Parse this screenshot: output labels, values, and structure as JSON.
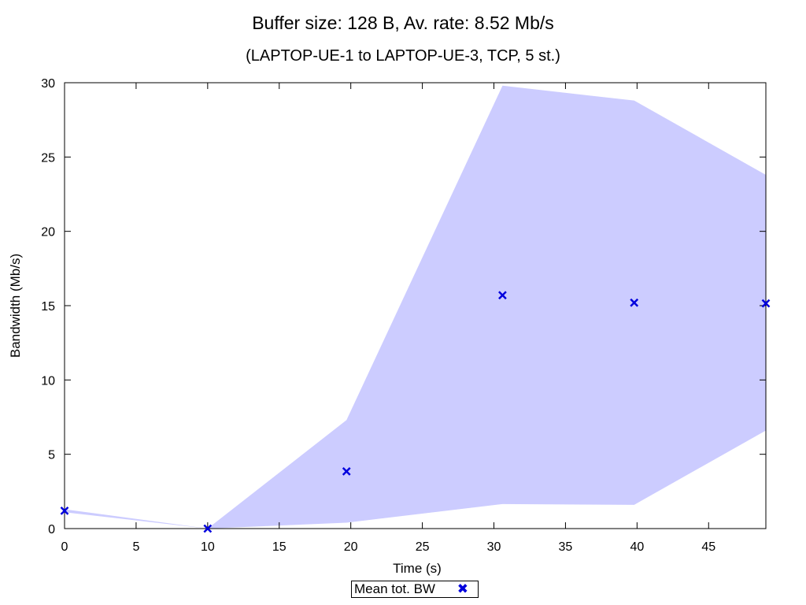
{
  "chart_data": {
    "type": "scatter",
    "title": "Buffer size: 128 B, Av. rate: 8.52 Mb/s",
    "subtitle": "(LAPTOP-UE-1 to LAPTOP-UE-3, TCP, 5 st.)",
    "xlabel": "Time (s)",
    "ylabel": "Bandwidth (Mb/s)",
    "xlim": [
      0,
      49
    ],
    "ylim": [
      0,
      30
    ],
    "xticks": [
      0,
      5,
      10,
      15,
      20,
      25,
      30,
      35,
      40,
      45
    ],
    "yticks": [
      0,
      5,
      10,
      15,
      20,
      25,
      30
    ],
    "grid": false,
    "legend_position": "bottom-center",
    "series": [
      {
        "name": "Mean tot. BW",
        "marker": "x",
        "color": "#0000dd",
        "x": [
          0,
          10,
          19.7,
          30.6,
          39.8,
          49
        ],
        "y": [
          1.2,
          0.0,
          3.85,
          15.7,
          15.2,
          15.15
        ]
      }
    ],
    "band": {
      "color": "#ccccff",
      "x": [
        0,
        10,
        19.7,
        30.6,
        39.8,
        49
      ],
      "upper": [
        1.3,
        0.0,
        7.3,
        29.8,
        28.8,
        23.8
      ],
      "lower": [
        1.1,
        0.0,
        0.4,
        1.65,
        1.6,
        6.6
      ]
    }
  }
}
